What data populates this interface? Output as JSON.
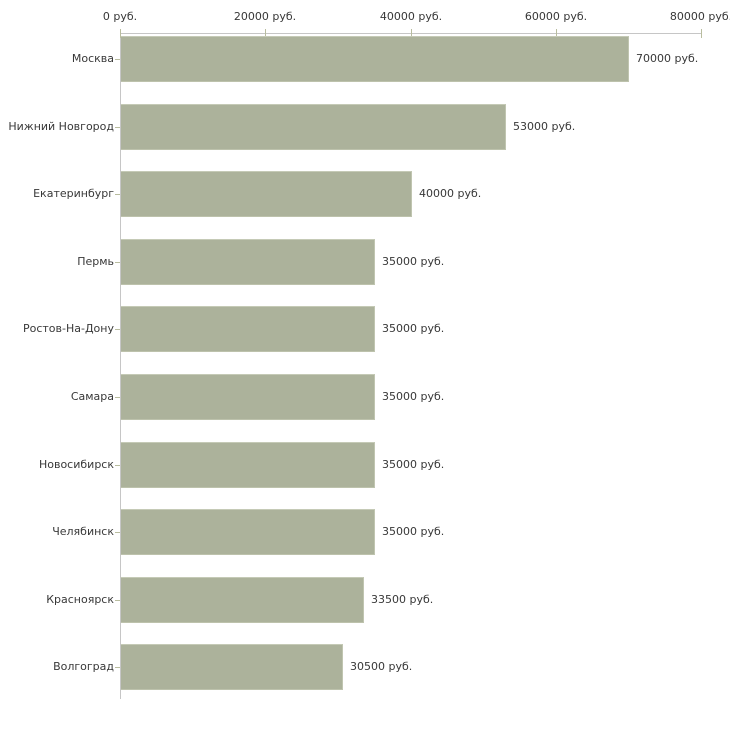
{
  "chart_data": {
    "type": "bar",
    "orientation": "horizontal",
    "title": "",
    "xlabel": "",
    "ylabel": "",
    "unit": "руб.",
    "grid": false,
    "legend": "none",
    "xlim": [
      0,
      80000
    ],
    "x_ticks": [
      0,
      20000,
      40000,
      60000,
      80000
    ],
    "x_tick_labels": [
      "0 руб.",
      "20000 руб.",
      "40000 руб.",
      "60000 руб.",
      "80000 руб."
    ],
    "categories": [
      "Москва",
      "Нижний Новгород",
      "Екатеринбург",
      "Пермь",
      "Ростов-На-Дону",
      "Самара",
      "Новосибирск",
      "Челябинск",
      "Красноярск",
      "Волгоград"
    ],
    "values": [
      70000,
      53000,
      40000,
      35000,
      35000,
      35000,
      35000,
      35000,
      33500,
      30500
    ],
    "value_labels": [
      "70000 руб.",
      "53000 руб.",
      "40000 руб.",
      "35000 руб.",
      "35000 руб.",
      "35000 руб.",
      "35000 руб.",
      "35000 руб.",
      "33500 руб.",
      "30500 руб."
    ],
    "colors": {
      "bar_fill": "#acb29b",
      "bar_edge_highlight": "#c5cab6",
      "axis_line": "#c6c6c6",
      "tick_mark": "#b9bd9f",
      "label_text": "#383838",
      "background": "#ffffff"
    }
  }
}
